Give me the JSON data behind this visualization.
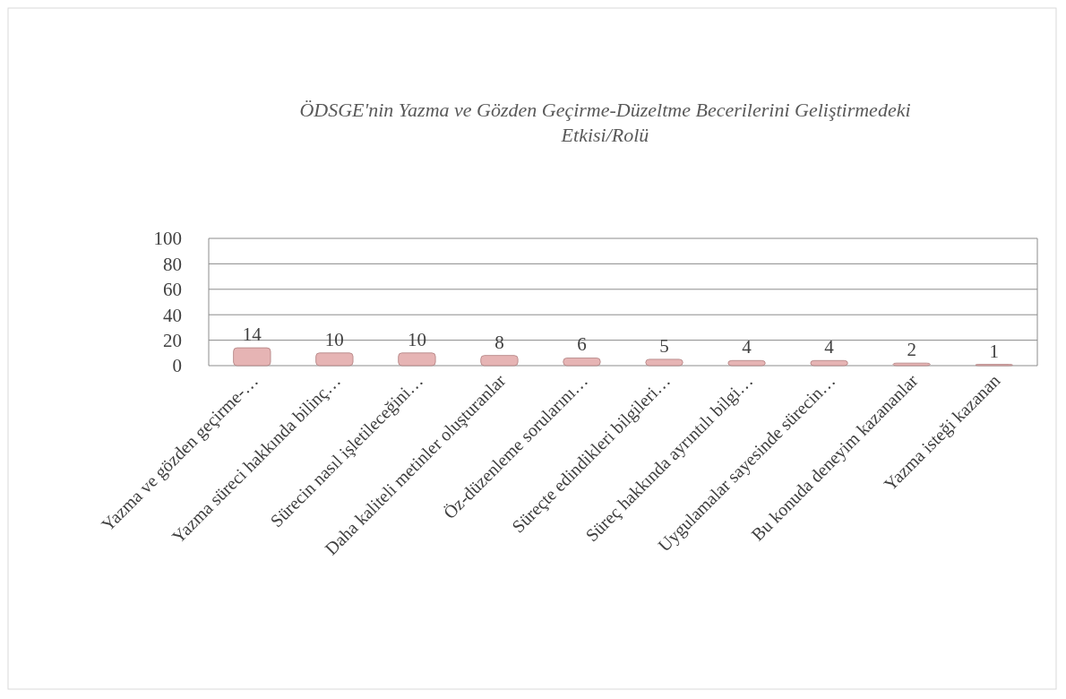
{
  "chart_data": {
    "type": "bar",
    "title": "ÖDSGE'nin Yazma ve Gözden Geçirme-Düzeltme Becerilerini Geliştirmedeki Etkisi/Rolü",
    "categories": [
      "Yazma ve gözden geçirme-…",
      "Yazma süreci hakkında bilinç…",
      "Sürecin nasıl işletileceğini…",
      "Daha kaliteli metinler oluşturanlar",
      "Öz-düzenleme sorularını…",
      "Süreçte edindikleri bilgileri…",
      "Süreç hakkında ayrıntılı bilgi…",
      "Uygulamalar sayesinde sürecin…",
      "Bu konuda deneyim kazananlar",
      "Yazma isteği kazanan"
    ],
    "values": [
      14,
      10,
      10,
      8,
      6,
      5,
      4,
      4,
      2,
      1
    ],
    "color": "#e6b4b4",
    "ylim": [
      0,
      100
    ],
    "yticks": [
      0,
      20,
      40,
      60,
      80,
      100
    ],
    "grid": "y",
    "data_labels": true
  }
}
